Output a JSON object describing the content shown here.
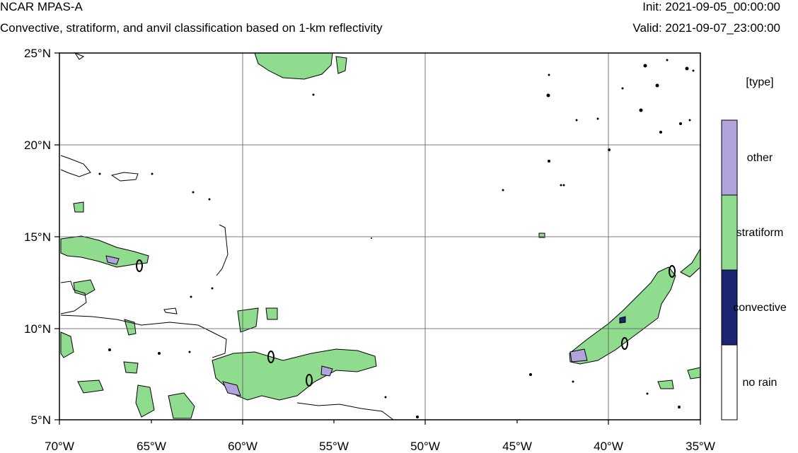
{
  "header": {
    "title": "NCAR MPAS-A",
    "subtitle": "Convective, stratiform, and anvil classification based on 1-km reflectivity",
    "init": "Init: 2021-09-05_00:00:00",
    "valid": "Valid: 2021-09-07_23:00:00"
  },
  "map": {
    "lon_range": [
      -70,
      -35
    ],
    "lat_range": [
      5,
      25
    ],
    "lon_ticks": [
      "70°W",
      "65°W",
      "60°W",
      "55°W",
      "50°W",
      "45°W",
      "40°W",
      "35°W"
    ],
    "lat_ticks": [
      "25°N",
      "20°N",
      "15°N",
      "10°N",
      "5°N"
    ],
    "colors": {
      "stratiform": "#8fdc8f",
      "convective": "#1a2470",
      "other": "#b3a3dc",
      "no_rain": "#ffffff",
      "contour": "#000000",
      "grid": "#555555"
    }
  },
  "legend": {
    "title": "[type]",
    "items": [
      {
        "label": "other",
        "color": "#b3a3dc"
      },
      {
        "label": "stratiform",
        "color": "#8fdc8f"
      },
      {
        "label": "convective",
        "color": "#1a2470"
      },
      {
        "label": "no rain",
        "color": "#ffffff"
      }
    ]
  }
}
